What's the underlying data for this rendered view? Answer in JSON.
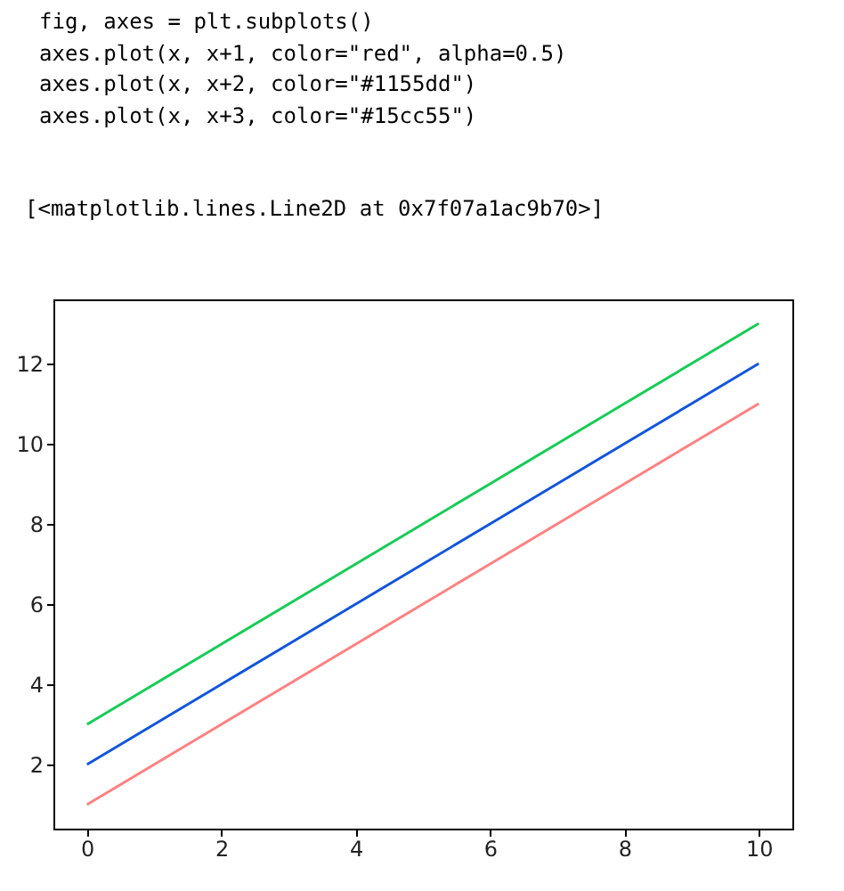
{
  "chart_data": {
    "type": "line",
    "annotations": [
      "fig, axes = plt.subplots()",
      "axes.plot(x, x+1, color=\"red\", alpha=0.5)",
      "axes.plot(x, x+2, color=\"#1155dd\")",
      "axes.plot(x, x+3, color=\"#15cc55\")",
      "[<matplotlib.lines.Line2D at 0x7f07a1ac9b70>]"
    ],
    "x": [
      0,
      1,
      2,
      3,
      4,
      5,
      6,
      7,
      8,
      9,
      10
    ],
    "series": [
      {
        "color": "#ff8080",
        "values": [
          1,
          2,
          3,
          4,
          5,
          6,
          7,
          8,
          9,
          10,
          11
        ]
      },
      {
        "color": "#1155dd",
        "values": [
          2,
          3,
          4,
          5,
          6,
          7,
          8,
          9,
          10,
          11,
          12
        ]
      },
      {
        "color": "#15cc55",
        "values": [
          3,
          4,
          5,
          6,
          7,
          8,
          9,
          10,
          11,
          12,
          13
        ]
      }
    ],
    "xlim": [
      -0.5,
      10.5
    ],
    "ylim": [
      0.4,
      13.6
    ],
    "xticks": [
      0,
      2,
      4,
      6,
      8,
      10
    ],
    "yticks": [
      2,
      4,
      6,
      8,
      10,
      12
    ],
    "marker": "none",
    "line_style": "solid"
  }
}
